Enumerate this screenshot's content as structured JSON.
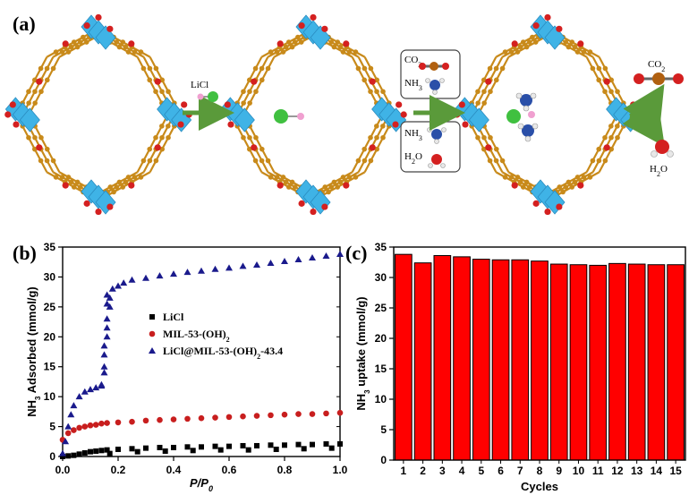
{
  "labels": {
    "a": "(a)",
    "b": "(b)",
    "c": "(c)"
  },
  "scheme": {
    "reagent": "LiCl",
    "box1": {
      "line1": "CO2",
      "line2": "NH3"
    },
    "box2": {
      "line1": "NH3",
      "line2": "H2O"
    },
    "out1": "CO2",
    "out2": "H2O"
  },
  "colors": {
    "framework_node": "#3fb3e6",
    "framework_linker": "#c88a1a",
    "oxygen": "#d42020",
    "lithium_chloride": "#40c040",
    "nitrogen": "#2a4fa8",
    "carbon_co2": "#b06010",
    "arrow": "#5a9a3a",
    "bar_fill": "#ff0000"
  },
  "chart_data": [
    {
      "id": "b",
      "type": "scatter",
      "xlabel": "P/P0",
      "ylabel": "NH3 Adsorbed (mmol/g)",
      "xlim": [
        0.0,
        1.0
      ],
      "ylim": [
        0,
        35
      ],
      "xticks": [
        "0.0",
        "0.2",
        "0.4",
        "0.6",
        "0.8",
        "1.0"
      ],
      "yticks": [
        "0",
        "5",
        "10",
        "15",
        "20",
        "25",
        "30",
        "35"
      ],
      "legend_position": "center-right",
      "series": [
        {
          "name": "LiCl",
          "marker": "square",
          "color": "#000000",
          "x": [
            0.0,
            0.02,
            0.04,
            0.06,
            0.08,
            0.1,
            0.12,
            0.14,
            0.16,
            0.2,
            0.25,
            0.3,
            0.35,
            0.4,
            0.45,
            0.5,
            0.55,
            0.6,
            0.65,
            0.7,
            0.75,
            0.8,
            0.85,
            0.9,
            0.95,
            1.0,
            0.17,
            0.27,
            0.37,
            0.47,
            0.57,
            0.67,
            0.77,
            0.87,
            0.97
          ],
          "y": [
            0.0,
            0.1,
            0.2,
            0.4,
            0.6,
            0.8,
            0.9,
            1.0,
            1.1,
            1.2,
            1.3,
            1.4,
            1.5,
            1.5,
            1.6,
            1.6,
            1.7,
            1.7,
            1.8,
            1.8,
            1.9,
            1.9,
            2.0,
            2.0,
            2.1,
            2.1,
            0.5,
            0.8,
            0.9,
            1.0,
            1.1,
            1.1,
            1.2,
            1.3,
            1.4
          ]
        },
        {
          "name": "MIL-53-(OH)2",
          "marker": "circle",
          "color": "#c81e1e",
          "x": [
            0.0,
            0.02,
            0.04,
            0.06,
            0.08,
            0.1,
            0.12,
            0.14,
            0.16,
            0.2,
            0.25,
            0.3,
            0.35,
            0.4,
            0.45,
            0.5,
            0.55,
            0.6,
            0.65,
            0.7,
            0.75,
            0.8,
            0.85,
            0.9,
            0.95,
            1.0
          ],
          "y": [
            2.8,
            3.9,
            4.4,
            4.8,
            5.0,
            5.2,
            5.3,
            5.5,
            5.6,
            5.7,
            5.8,
            6.0,
            6.1,
            6.2,
            6.3,
            6.4,
            6.5,
            6.6,
            6.7,
            6.8,
            6.9,
            7.0,
            7.1,
            7.1,
            7.2,
            7.3
          ]
        },
        {
          "name": "LiCl@MIL-53-(OH)2-43.4",
          "marker": "triangle",
          "color": "#1a1a8c",
          "x": [
            0.0,
            0.01,
            0.02,
            0.03,
            0.04,
            0.06,
            0.08,
            0.1,
            0.12,
            0.14,
            0.15,
            0.15,
            0.16,
            0.16,
            0.16,
            0.16,
            0.17,
            0.17,
            0.18,
            0.2,
            0.22,
            0.25,
            0.3,
            0.35,
            0.4,
            0.45,
            0.5,
            0.55,
            0.6,
            0.65,
            0.7,
            0.75,
            0.8,
            0.85,
            0.9,
            0.95,
            1.0,
            0.14,
            0.15,
            0.15,
            0.16
          ],
          "y": [
            0.5,
            2.5,
            5.0,
            7.0,
            8.5,
            10.0,
            10.8,
            11.2,
            11.5,
            11.8,
            14.0,
            17.0,
            20.0,
            23.0,
            25.5,
            27.0,
            26.5,
            25.0,
            28.0,
            28.5,
            29.0,
            29.5,
            29.8,
            30.2,
            30.5,
            30.8,
            31.0,
            31.3,
            31.5,
            31.8,
            32.0,
            32.3,
            32.6,
            32.9,
            33.2,
            33.5,
            33.8,
            12.0,
            15.0,
            18.5,
            21.5
          ]
        }
      ]
    },
    {
      "id": "c",
      "type": "bar",
      "xlabel": "Cycles",
      "ylabel": "NH3 uptake (mmol/g)",
      "ylim": [
        0,
        35
      ],
      "yticks": [
        "0",
        "5",
        "10",
        "15",
        "20",
        "25",
        "30",
        "35"
      ],
      "categories": [
        "1",
        "2",
        "3",
        "4",
        "5",
        "6",
        "7",
        "8",
        "9",
        "10",
        "11",
        "12",
        "13",
        "14",
        "15"
      ],
      "values": [
        33.8,
        32.4,
        33.6,
        33.4,
        33.0,
        32.9,
        32.9,
        32.7,
        32.2,
        32.1,
        32.0,
        32.3,
        32.2,
        32.1,
        32.1
      ]
    }
  ]
}
